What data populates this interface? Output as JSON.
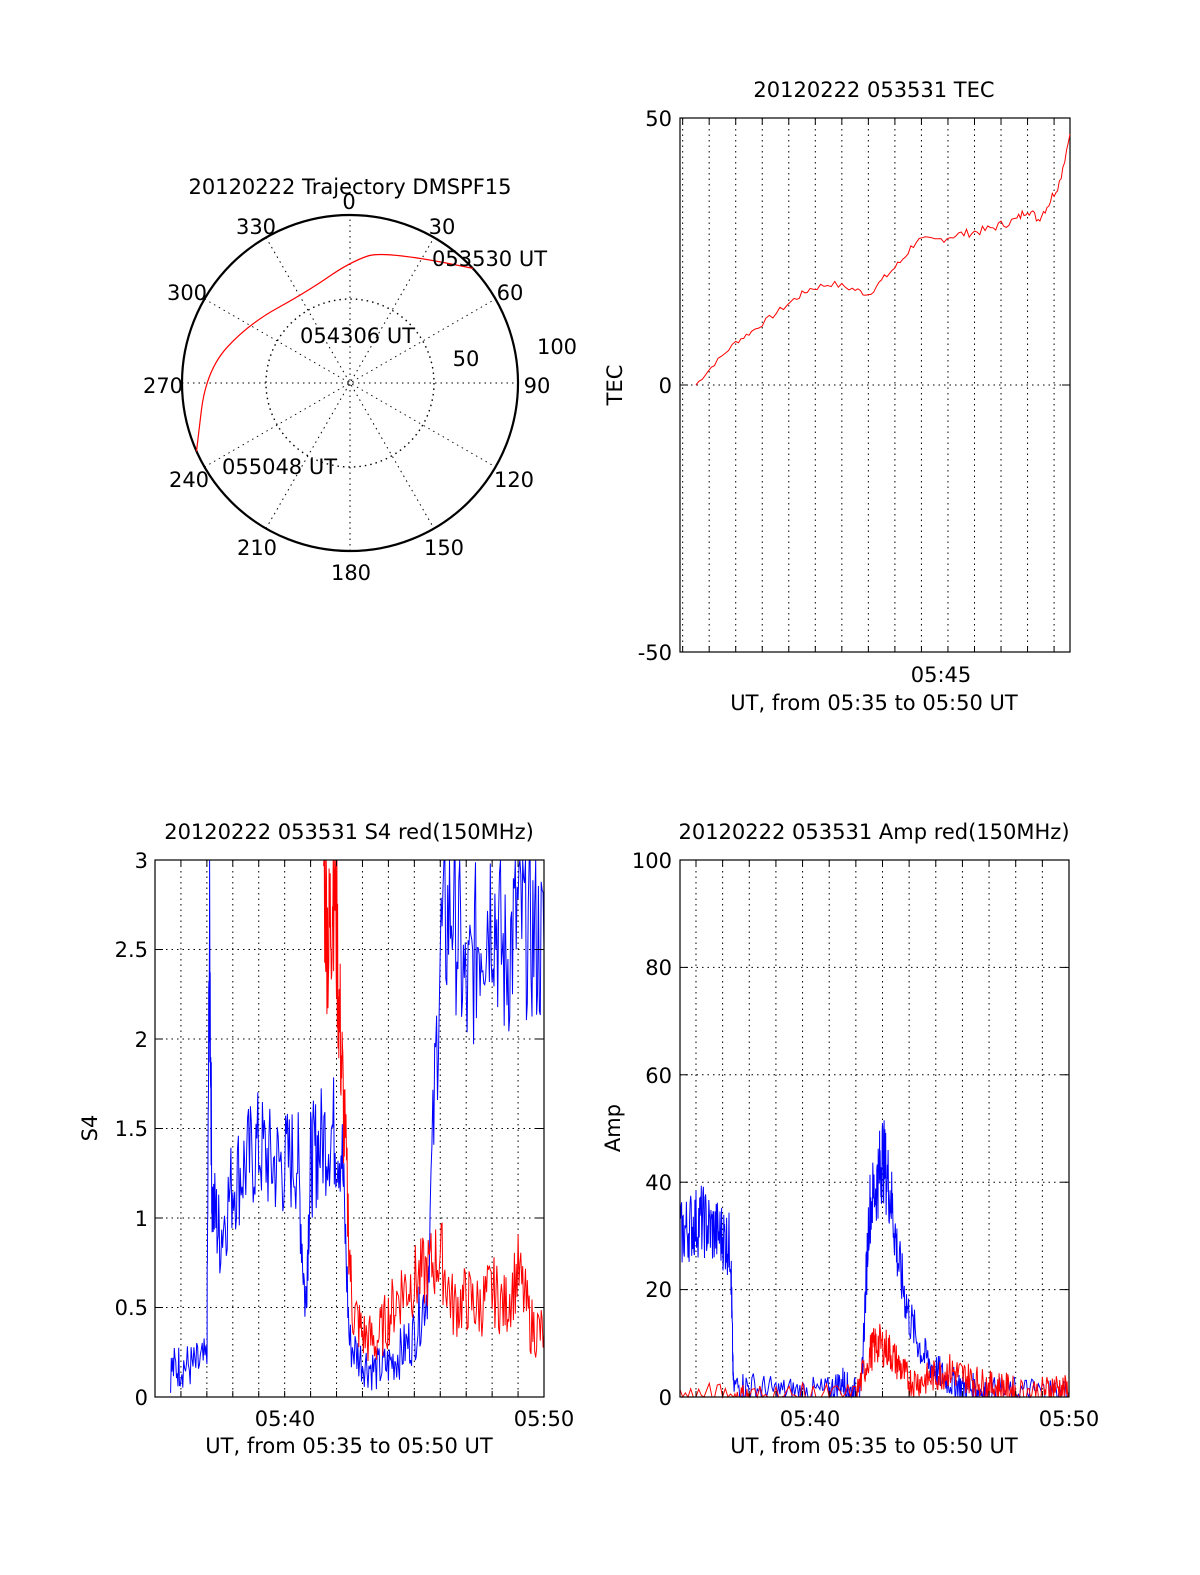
{
  "colors": {
    "red": "#ff0000",
    "blue": "#0000ff",
    "axis": "#000000"
  },
  "chart_data": [
    {
      "type": "polar",
      "title": "20120222 Trajectory DMSPF15",
      "azimuth_labels": [
        "0",
        "30",
        "60",
        "90",
        "120",
        "150",
        "180",
        "210",
        "240",
        "270",
        "300",
        "330"
      ],
      "radial_labels": [
        "50",
        "100"
      ],
      "trajectory": {
        "color": "red",
        "points": [
          {
            "az": 47,
            "el_label": "053530 UT",
            "r": 100
          },
          {
            "az": 15,
            "r": 82
          },
          {
            "az": 0,
            "r": 72
          },
          {
            "az": 335,
            "r": 60
          },
          {
            "az": 300,
            "r": 70
          },
          {
            "az": 275,
            "r": 86
          },
          {
            "az": 246,
            "r": 100
          }
        ],
        "annotations": [
          {
            "label": "053530 UT"
          },
          {
            "label": "054306 UT"
          },
          {
            "label": "055048 UT"
          }
        ]
      }
    },
    {
      "type": "line",
      "title": "20120222 053531 TEC",
      "xlabel": "UT, from 05:35 to 05:50 UT",
      "ylabel": "TEC",
      "ylim": [
        -50,
        50
      ],
      "xlim_min": [
        35.9,
        50.6
      ],
      "yticks": [
        "-50",
        "0",
        "50"
      ],
      "xticks": [
        {
          "label": "05:45",
          "min": 45
        }
      ],
      "grid": "vertical-dotted",
      "series": [
        {
          "color": "red",
          "x": [
            36.5,
            37.2,
            38.0,
            38.6,
            39.4,
            40.2,
            40.8,
            41.6,
            42.4,
            43.0,
            43.6,
            44.2,
            44.8,
            45.5,
            46.2,
            46.8,
            47.4,
            48.0,
            48.6,
            49.0,
            49.4,
            49.8,
            50.2,
            50.6
          ],
          "y": [
            0,
            4,
            8,
            10,
            13,
            16,
            18,
            19,
            18,
            17,
            20,
            23,
            27,
            27,
            28,
            28.5,
            29,
            30,
            31,
            33,
            31,
            34,
            38,
            47
          ]
        }
      ]
    },
    {
      "type": "line",
      "title": "20120222 053531 S4 red(150MHz)",
      "xlabel": "UT, from 05:35 to 05:50 UT",
      "ylabel": "S4",
      "ylim": [
        0,
        3
      ],
      "xlim_min": [
        35,
        50
      ],
      "yticks": [
        "0",
        "0.5",
        "1",
        "1.5",
        "2",
        "2.5",
        "3"
      ],
      "xticks": [
        {
          "label": "05:40",
          "min": 40
        },
        {
          "label": "05:50",
          "min": 50
        }
      ],
      "grid": "dotted",
      "series": [
        {
          "color": "blue",
          "x": [
            35.6,
            36.0,
            36.5,
            37.0,
            37.1,
            37.2,
            37.5,
            38.0,
            38.5,
            39.0,
            39.5,
            40.0,
            40.5,
            40.8,
            41.0,
            41.3,
            41.8,
            42.2,
            42.5,
            43.0,
            43.5,
            44.0,
            44.5,
            45.0,
            45.5,
            46.0,
            46.5,
            47.0,
            47.5,
            48.0,
            48.5,
            49.0,
            49.5,
            50.0
          ],
          "y": [
            0.15,
            0.18,
            0.17,
            0.2,
            2.65,
            1.1,
            0.9,
            1.2,
            1.3,
            1.4,
            1.3,
            1.3,
            1.35,
            0.5,
            1.3,
            1.4,
            1.5,
            1.4,
            0.3,
            0.2,
            0.15,
            0.18,
            0.25,
            0.35,
            0.6,
            2.5,
            2.8,
            2.2,
            2.6,
            2.8,
            2.4,
            2.7,
            2.6,
            2.5
          ]
        },
        {
          "color": "red",
          "x": [
            41.5,
            41.7,
            41.9,
            42.1,
            42.3,
            42.6,
            43.0,
            43.5,
            44.0,
            44.5,
            45.0,
            45.5,
            46.0,
            46.5,
            47.0,
            47.5,
            48.0,
            48.5,
            49.0,
            49.5,
            50.0
          ],
          "y": [
            3.0,
            2.5,
            3.0,
            2.2,
            1.5,
            0.5,
            0.35,
            0.3,
            0.45,
            0.6,
            0.65,
            0.7,
            0.8,
            0.5,
            0.55,
            0.5,
            0.6,
            0.5,
            0.7,
            0.4,
            0.35
          ]
        }
      ]
    },
    {
      "type": "line",
      "title": "20120222 053531 Amp red(150MHz)",
      "xlabel": "UT, from 05:35 to 05:50 UT",
      "ylabel": "Amp",
      "ylim": [
        0,
        100
      ],
      "xlim_min": [
        35.4,
        50
      ],
      "yticks": [
        "0",
        "20",
        "40",
        "60",
        "80",
        "100"
      ],
      "xticks": [
        {
          "label": "05:40",
          "min": 40
        },
        {
          "label": "05:50",
          "min": 50
        }
      ],
      "grid": "dotted",
      "series": [
        {
          "color": "blue",
          "x": [
            35.4,
            35.8,
            36.2,
            36.6,
            37.0,
            37.3,
            37.4,
            38.0,
            39.0,
            40.0,
            41.0,
            41.5,
            41.8,
            42.2,
            42.5,
            42.8,
            43.0,
            43.3,
            43.6,
            44.0,
            44.5,
            45.0,
            45.5,
            46.0,
            46.5,
            47.0,
            48.0,
            49.0,
            50.0
          ],
          "y": [
            30,
            32,
            33,
            31,
            30,
            28,
            2,
            2,
            1,
            1,
            1,
            3,
            1,
            1,
            35,
            40,
            45,
            38,
            25,
            15,
            8,
            5,
            3,
            2,
            1.5,
            1,
            1,
            1,
            1
          ]
        },
        {
          "color": "red",
          "x": [
            35.4,
            37.4,
            38.0,
            40.0,
            42.0,
            42.5,
            42.8,
            43.2,
            43.6,
            44.0,
            44.5,
            45.0,
            45.5,
            46.0,
            46.5,
            47.0,
            47.5,
            48.0,
            49.0,
            49.5,
            50.0
          ],
          "y": [
            0,
            0,
            0,
            0,
            0,
            8,
            10,
            9,
            6,
            3,
            3,
            4,
            5,
            4,
            3,
            2,
            2,
            1,
            1,
            2,
            1
          ]
        }
      ]
    }
  ]
}
